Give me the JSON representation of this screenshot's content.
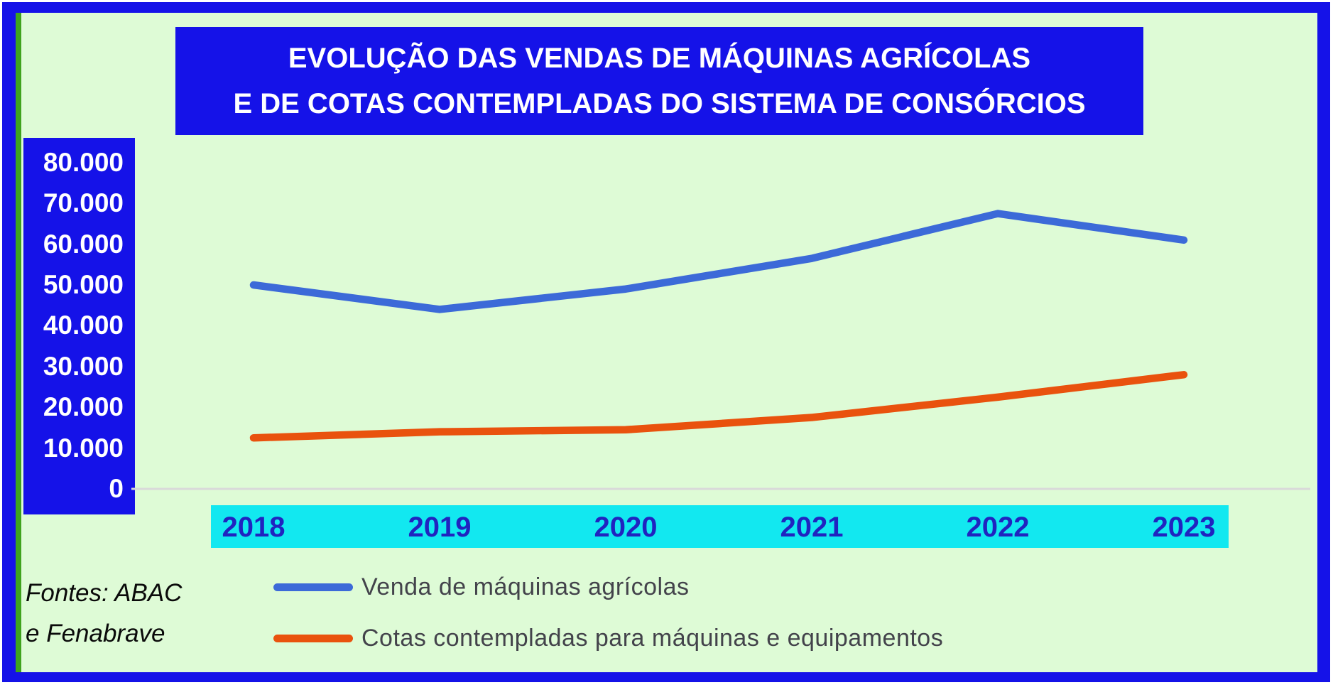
{
  "title": {
    "line1": "EVOLUÇÃO DAS VENDAS DE MÁQUINAS AGRÍCOLAS",
    "line2": "E DE COTAS CONTEMPLADAS DO SISTEMA DE CONSÓRCIOS"
  },
  "source": {
    "line1": "Fontes: ABAC",
    "line2": "e Fenabrave"
  },
  "legend": [
    {
      "label": "Venda de máquinas agrícolas",
      "color": "#3C6AD8"
    },
    {
      "label": "Cotas contempladas para máquinas e equipamentos",
      "color": "#E9520E"
    }
  ],
  "colors": {
    "frame_blue": "#1512E8",
    "frame_green": "#3FA31D",
    "background_green": "#DEFBD6",
    "banner_blue": "#1512E8",
    "axis_band_cyan": "#12E8F0",
    "year_text_blue": "#2024C0",
    "series_blue": "#3C6AD8",
    "series_orange": "#E9520E",
    "baseline_gray": "#D9D9D9"
  },
  "chart_data": {
    "type": "line",
    "title": "EVOLUÇÃO DAS VENDAS DE MÁQUINAS AGRÍCOLAS E DE COTAS CONTEMPLADAS DO SISTEMA DE CONSÓRCIOS",
    "categories": [
      "2018",
      "2019",
      "2020",
      "2021",
      "2022",
      "2023"
    ],
    "series": [
      {
        "name": "Venda de máquinas agrícolas",
        "color": "#3C6AD8",
        "values": [
          50000,
          44000,
          49000,
          56500,
          67500,
          61000
        ]
      },
      {
        "name": "Cotas contempladas para máquinas e equipamentos",
        "color": "#E9520E",
        "values": [
          12500,
          14000,
          14500,
          17500,
          22500,
          28000
        ]
      }
    ],
    "xlabel": "",
    "ylabel": "",
    "ylim": [
      0,
      80000
    ],
    "y_ticks": [
      80000,
      70000,
      60000,
      50000,
      40000,
      30000,
      20000,
      10000,
      0
    ],
    "y_tick_labels": [
      "80.000",
      "70.000",
      "60.000",
      "50.000",
      "40.000",
      "30.000",
      "20.000",
      "10.000",
      "0"
    ],
    "grid": false,
    "legend_position": "bottom-left",
    "source": "Fontes: ABAC e Fenabrave"
  }
}
